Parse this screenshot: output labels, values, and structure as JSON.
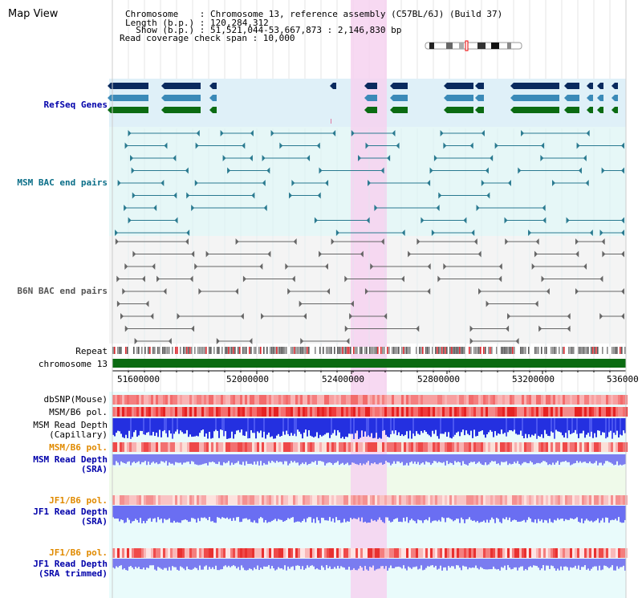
{
  "header": {
    "title": "Map View",
    "chromosome_line": "Chromosome    : Chromosome 13, reference assembly (C57BL/6J) (Build 37)",
    "length_line": "Length (b.p.) : 120,284,312",
    "show_line": "  Show (b.p.) : 51,521,044-53,667,873 : 2,146,830 bp",
    "coverage_line": "Read coverage check span : 10,000"
  },
  "tracks": {
    "refseq": "RefSeq Genes",
    "msm_bac": "MSM BAC end pairs",
    "b6n_bac": "B6N BAC end pairs",
    "repeat": "Repeat",
    "chromosome": "chromosome 13",
    "dbsnp": "dbSNP(Mouse)",
    "msm_b6_pol": "MSM/B6 pol.",
    "msm_depth_cap_1": "MSM Read Depth",
    "msm_depth_cap_2": "(Capillary)",
    "msm_b6_pol_2": "MSM/B6 pol.",
    "msm_depth_sra_1": "MSM Read Depth",
    "msm_depth_sra_2": "(SRA)",
    "jf1_b6_pol": "JF1/B6 pol.",
    "jf1_depth_sra_1": "JF1 Read Depth",
    "jf1_depth_sra_2": "(SRA)",
    "jf1_b6_pol_2": "JF1/B6 pol.",
    "jf1_depth_trim_1": "JF1 Read Depth",
    "jf1_depth_trim_2": "(SRA trimmed)"
  },
  "axis": {
    "ticks": [
      "51600000",
      "52000000",
      "52400000",
      "52800000",
      "53200000",
      "536000"
    ]
  },
  "colors": {
    "refseq_dark": "#0a2a5e",
    "refseq_mid": "#3b8ab8",
    "refseq_green": "#0b6b12",
    "msm_bac": "#2a7a90",
    "b6n_bac": "#666666",
    "highlight": "#f6d2f0",
    "label_blue": "#0000aa",
    "label_orange": "#e08a00",
    "label_teal": "#0a6e88"
  }
}
